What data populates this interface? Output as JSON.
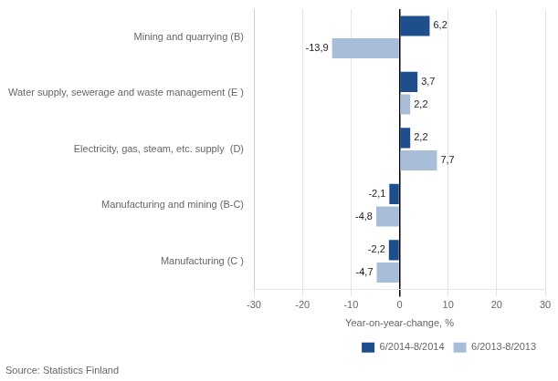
{
  "chart_data": {
    "type": "bar",
    "orientation": "horizontal",
    "categories": [
      "Mining and quarrying (B)",
      "Water supply, sewerage and waste management (E )",
      "Electricity, gas, steam, etc. supply  (D)",
      "Manufacturing and mining (B-C)",
      "Manufacturing (C )"
    ],
    "series": [
      {
        "name": "6/2014-8/2014",
        "color": "#1F4E8C",
        "values": [
          6.2,
          3.7,
          2.2,
          -2.1,
          -2.2
        ],
        "value_labels": [
          "6,2",
          "3,7",
          "2,2",
          "-2,1",
          "-2,2"
        ]
      },
      {
        "name": "6/2013-8/2013",
        "color": "#A8BDD8",
        "values": [
          -13.9,
          2.2,
          7.7,
          -4.8,
          -4.7
        ],
        "value_labels": [
          "-13,9",
          "2,2",
          "7,7",
          "-4,8",
          "-4,7"
        ]
      }
    ],
    "xlabel": "Year-on-year-change, %",
    "xlim": [
      -30,
      30
    ],
    "xticks": [
      -30,
      -20,
      -10,
      0,
      10,
      20,
      30
    ],
    "grid": true,
    "legend": "lower right",
    "data_labels": true,
    "annotations": [
      "Source: Statistics Finland"
    ]
  }
}
